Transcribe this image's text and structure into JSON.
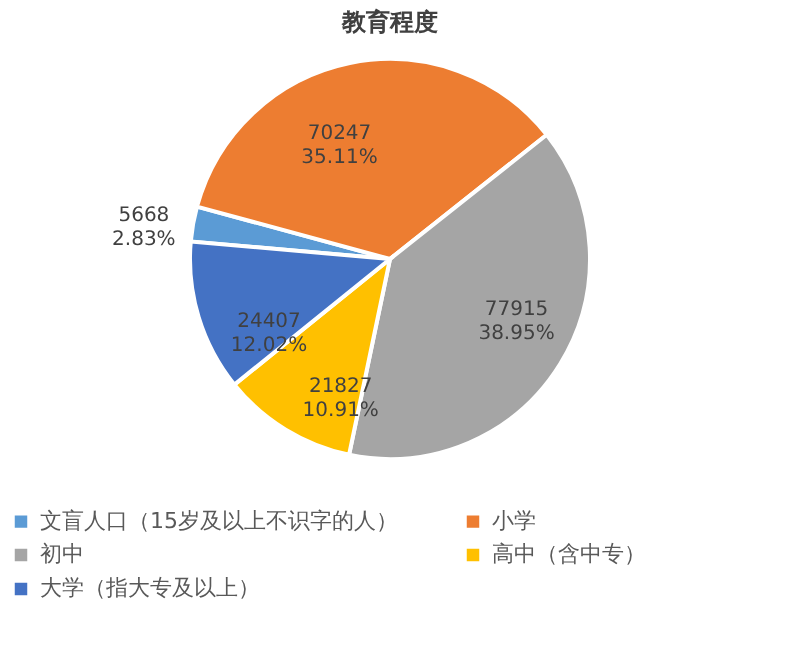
{
  "chart_data": {
    "type": "pie",
    "title": "教育程度",
    "categories": [
      "文盲人口（15岁及以上不识字的人）",
      "小学",
      "初中",
      "高中（含中专）",
      "大学（指大专及以上）"
    ],
    "values": [
      5668,
      70247,
      77915,
      21827,
      24407
    ],
    "colors": [
      "#5b9bd5",
      "#ed7d31",
      "#a5a5a5",
      "#ffc000",
      "#4472c4"
    ],
    "value_labels": [
      "5668\n2.83%",
      "70247\n35.11%",
      "77915\n38.95%",
      "21827\n10.91%",
      "24407\n12.02%"
    ],
    "legend": "bottom"
  }
}
